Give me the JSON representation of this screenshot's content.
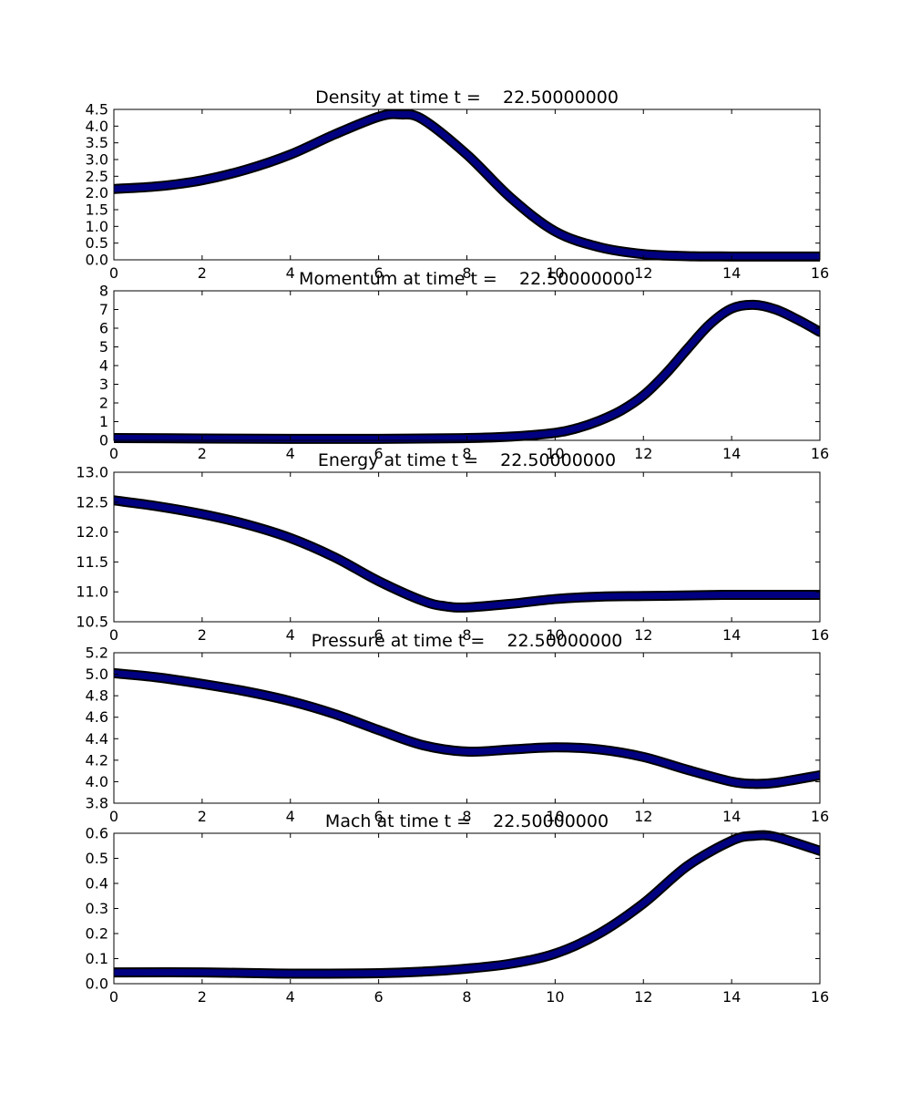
{
  "figure": {
    "background": "#ffffff",
    "line_color": "#000080",
    "line_edge_color": "#000000"
  },
  "chart_data": [
    {
      "type": "line",
      "title": "Density at time t =    22.50000000",
      "xlabel": "",
      "ylabel": "",
      "xlim": [
        0,
        16
      ],
      "ylim": [
        0,
        4.5
      ],
      "xticks": [
        "0",
        "2",
        "4",
        "6",
        "8",
        "10",
        "12",
        "14",
        "16"
      ],
      "yticks": [
        "0.0",
        "0.5",
        "1.0",
        "1.5",
        "2.0",
        "2.5",
        "3.0",
        "3.5",
        "4.0",
        "4.5"
      ],
      "grid": false,
      "x": [
        0,
        1,
        2,
        3,
        4,
        5,
        6,
        6.5,
        7,
        8,
        9,
        10,
        11,
        12,
        13,
        14,
        15,
        16
      ],
      "y": [
        2.12,
        2.2,
        2.38,
        2.7,
        3.15,
        3.75,
        4.28,
        4.35,
        4.2,
        3.15,
        1.85,
        0.85,
        0.38,
        0.17,
        0.11,
        0.1,
        0.1,
        0.1
      ]
    },
    {
      "type": "line",
      "title": "Momentum at time t =    22.50000000",
      "xlabel": "",
      "ylabel": "",
      "xlim": [
        0,
        16
      ],
      "ylim": [
        0,
        8
      ],
      "xticks": [
        "0",
        "2",
        "4",
        "6",
        "8",
        "10",
        "12",
        "14",
        "16"
      ],
      "yticks": [
        "0",
        "1",
        "2",
        "3",
        "4",
        "5",
        "6",
        "7",
        "8"
      ],
      "grid": false,
      "x": [
        0,
        2,
        4,
        6,
        8,
        9,
        10,
        10.5,
        11,
        11.5,
        12,
        12.5,
        13,
        13.5,
        14,
        14.5,
        15,
        15.5,
        16
      ],
      "y": [
        0.12,
        0.1,
        0.08,
        0.08,
        0.12,
        0.2,
        0.4,
        0.65,
        1.05,
        1.6,
        2.4,
        3.55,
        4.9,
        6.2,
        7.05,
        7.25,
        7.0,
        6.45,
        5.8
      ]
    },
    {
      "type": "line",
      "title": "Energy at time t =    22.50000000",
      "xlabel": "",
      "ylabel": "",
      "xlim": [
        0,
        16
      ],
      "ylim": [
        10.5,
        13.0
      ],
      "xticks": [
        "0",
        "2",
        "4",
        "6",
        "8",
        "10",
        "12",
        "14",
        "16"
      ],
      "yticks": [
        "10.5",
        "11.0",
        "11.5",
        "12.0",
        "12.5",
        "13.0"
      ],
      "grid": false,
      "x": [
        0,
        1,
        2,
        3,
        4,
        5,
        6,
        7,
        7.5,
        8,
        9,
        10,
        11,
        12,
        13,
        14,
        15,
        16
      ],
      "y": [
        12.53,
        12.43,
        12.3,
        12.13,
        11.9,
        11.58,
        11.18,
        10.85,
        10.76,
        10.74,
        10.8,
        10.88,
        10.92,
        10.93,
        10.94,
        10.95,
        10.95,
        10.95
      ]
    },
    {
      "type": "line",
      "title": "Pressure at time t =    22.50000000",
      "xlabel": "",
      "ylabel": "",
      "xlim": [
        0,
        16
      ],
      "ylim": [
        3.8,
        5.2
      ],
      "xticks": [
        "0",
        "2",
        "4",
        "6",
        "8",
        "10",
        "12",
        "14",
        "16"
      ],
      "yticks": [
        "3.8",
        "4.0",
        "4.2",
        "4.4",
        "4.6",
        "4.8",
        "5.0",
        "5.2"
      ],
      "grid": false,
      "x": [
        0,
        1,
        2,
        3,
        4,
        5,
        6,
        7,
        8,
        9,
        10,
        11,
        12,
        13,
        14,
        14.5,
        15,
        16
      ],
      "y": [
        5.01,
        4.97,
        4.91,
        4.84,
        4.75,
        4.63,
        4.48,
        4.34,
        4.28,
        4.3,
        4.32,
        4.3,
        4.23,
        4.11,
        4.0,
        3.98,
        3.99,
        4.06
      ]
    },
    {
      "type": "line",
      "title": "Mach at time t =    22.50000000",
      "xlabel": "",
      "ylabel": "",
      "xlim": [
        0,
        16
      ],
      "ylim": [
        0,
        0.6
      ],
      "xticks": [
        "0",
        "2",
        "4",
        "6",
        "8",
        "10",
        "12",
        "14",
        "16"
      ],
      "yticks": [
        "0.0",
        "0.1",
        "0.2",
        "0.3",
        "0.4",
        "0.5",
        "0.6"
      ],
      "grid": false,
      "x": [
        0,
        2,
        4,
        6,
        7,
        8,
        9,
        10,
        11,
        12,
        13,
        14,
        14.5,
        15,
        16
      ],
      "y": [
        0.045,
        0.045,
        0.04,
        0.042,
        0.048,
        0.06,
        0.08,
        0.12,
        0.2,
        0.32,
        0.47,
        0.57,
        0.59,
        0.585,
        0.53
      ]
    }
  ]
}
